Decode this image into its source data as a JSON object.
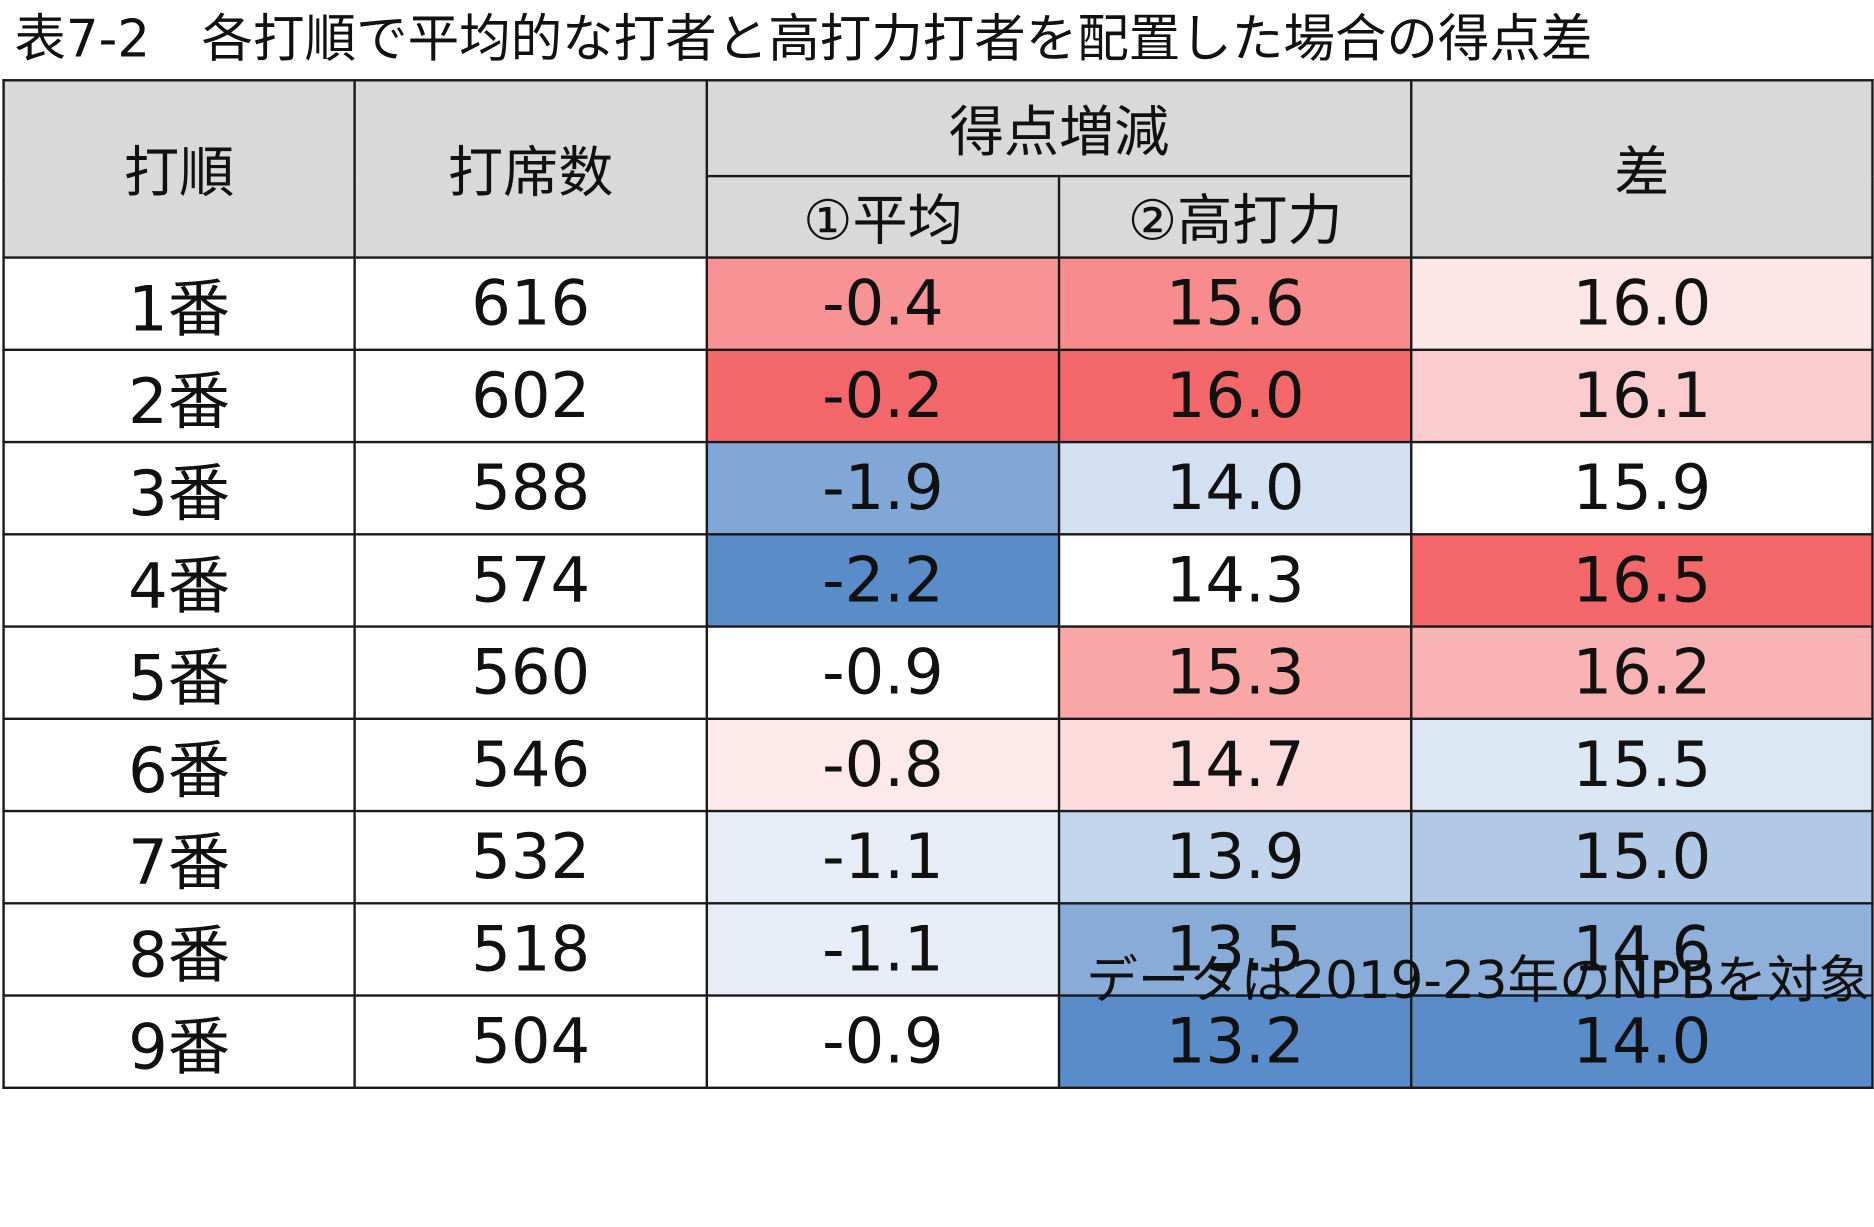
{
  "title": "表7-2　各打順で平均的な打者と高打力打者を配置した場合の得点差",
  "headers": {
    "batting_order": "打順",
    "plate_appearances": "打席数",
    "run_change": "得点増減",
    "average": "①平均",
    "high_power": "②高打力",
    "difference": "差"
  },
  "colors": {
    "red": "#f4676a",
    "blue": "#5b8cca",
    "white": "#ffffff",
    "header_bg": "#d9d9d9"
  },
  "rows": [
    {
      "order": "1番",
      "pa": "616",
      "avg": "-0.4",
      "high": "15.6",
      "diff": "16.0"
    },
    {
      "order": "2番",
      "pa": "602",
      "avg": "-0.2",
      "high": "16.0",
      "diff": "16.1"
    },
    {
      "order": "3番",
      "pa": "588",
      "avg": "-1.9",
      "high": "14.0",
      "diff": "15.9"
    },
    {
      "order": "4番",
      "pa": "574",
      "avg": "-2.2",
      "high": "14.3",
      "diff": "16.5"
    },
    {
      "order": "5番",
      "pa": "560",
      "avg": "-0.9",
      "high": "15.3",
      "diff": "16.2"
    },
    {
      "order": "6番",
      "pa": "546",
      "avg": "-0.8",
      "high": "14.7",
      "diff": "15.5"
    },
    {
      "order": "7番",
      "pa": "532",
      "avg": "-1.1",
      "high": "13.9",
      "diff": "15.0"
    },
    {
      "order": "8番",
      "pa": "518",
      "avg": "-1.1",
      "high": "13.5",
      "diff": "14.6"
    },
    {
      "order": "9番",
      "pa": "504",
      "avg": "-0.9",
      "high": "13.2",
      "diff": "14.0"
    }
  ],
  "chart_data": {
    "type": "table",
    "title": "表7-2　各打順で平均的な打者と高打力打者を配置した場合の得点差",
    "columns": [
      "打順",
      "打席数",
      "①平均",
      "②高打力",
      "差"
    ],
    "column_group": {
      "label": "得点増減",
      "spans": [
        "①平均",
        "②高打力"
      ]
    },
    "categories": [
      "1番",
      "2番",
      "3番",
      "4番",
      "5番",
      "6番",
      "7番",
      "8番",
      "9番"
    ],
    "series": [
      {
        "name": "打席数",
        "values": [
          616,
          602,
          588,
          574,
          560,
          546,
          532,
          518,
          504
        ]
      },
      {
        "name": "①平均",
        "values": [
          -0.4,
          -0.2,
          -1.9,
          -2.2,
          -0.9,
          -0.8,
          -1.1,
          -1.1,
          -0.9
        ]
      },
      {
        "name": "②高打力",
        "values": [
          15.6,
          16.0,
          14.0,
          14.3,
          15.3,
          14.7,
          13.9,
          13.5,
          13.2
        ]
      },
      {
        "name": "差",
        "values": [
          16.0,
          16.1,
          15.9,
          16.5,
          16.2,
          15.5,
          15.0,
          14.6,
          14.0
        ]
      }
    ],
    "color_scale": "red = high, white = middle, blue = low (per column)"
  },
  "note": "データは2019-23年のNPBを対象"
}
